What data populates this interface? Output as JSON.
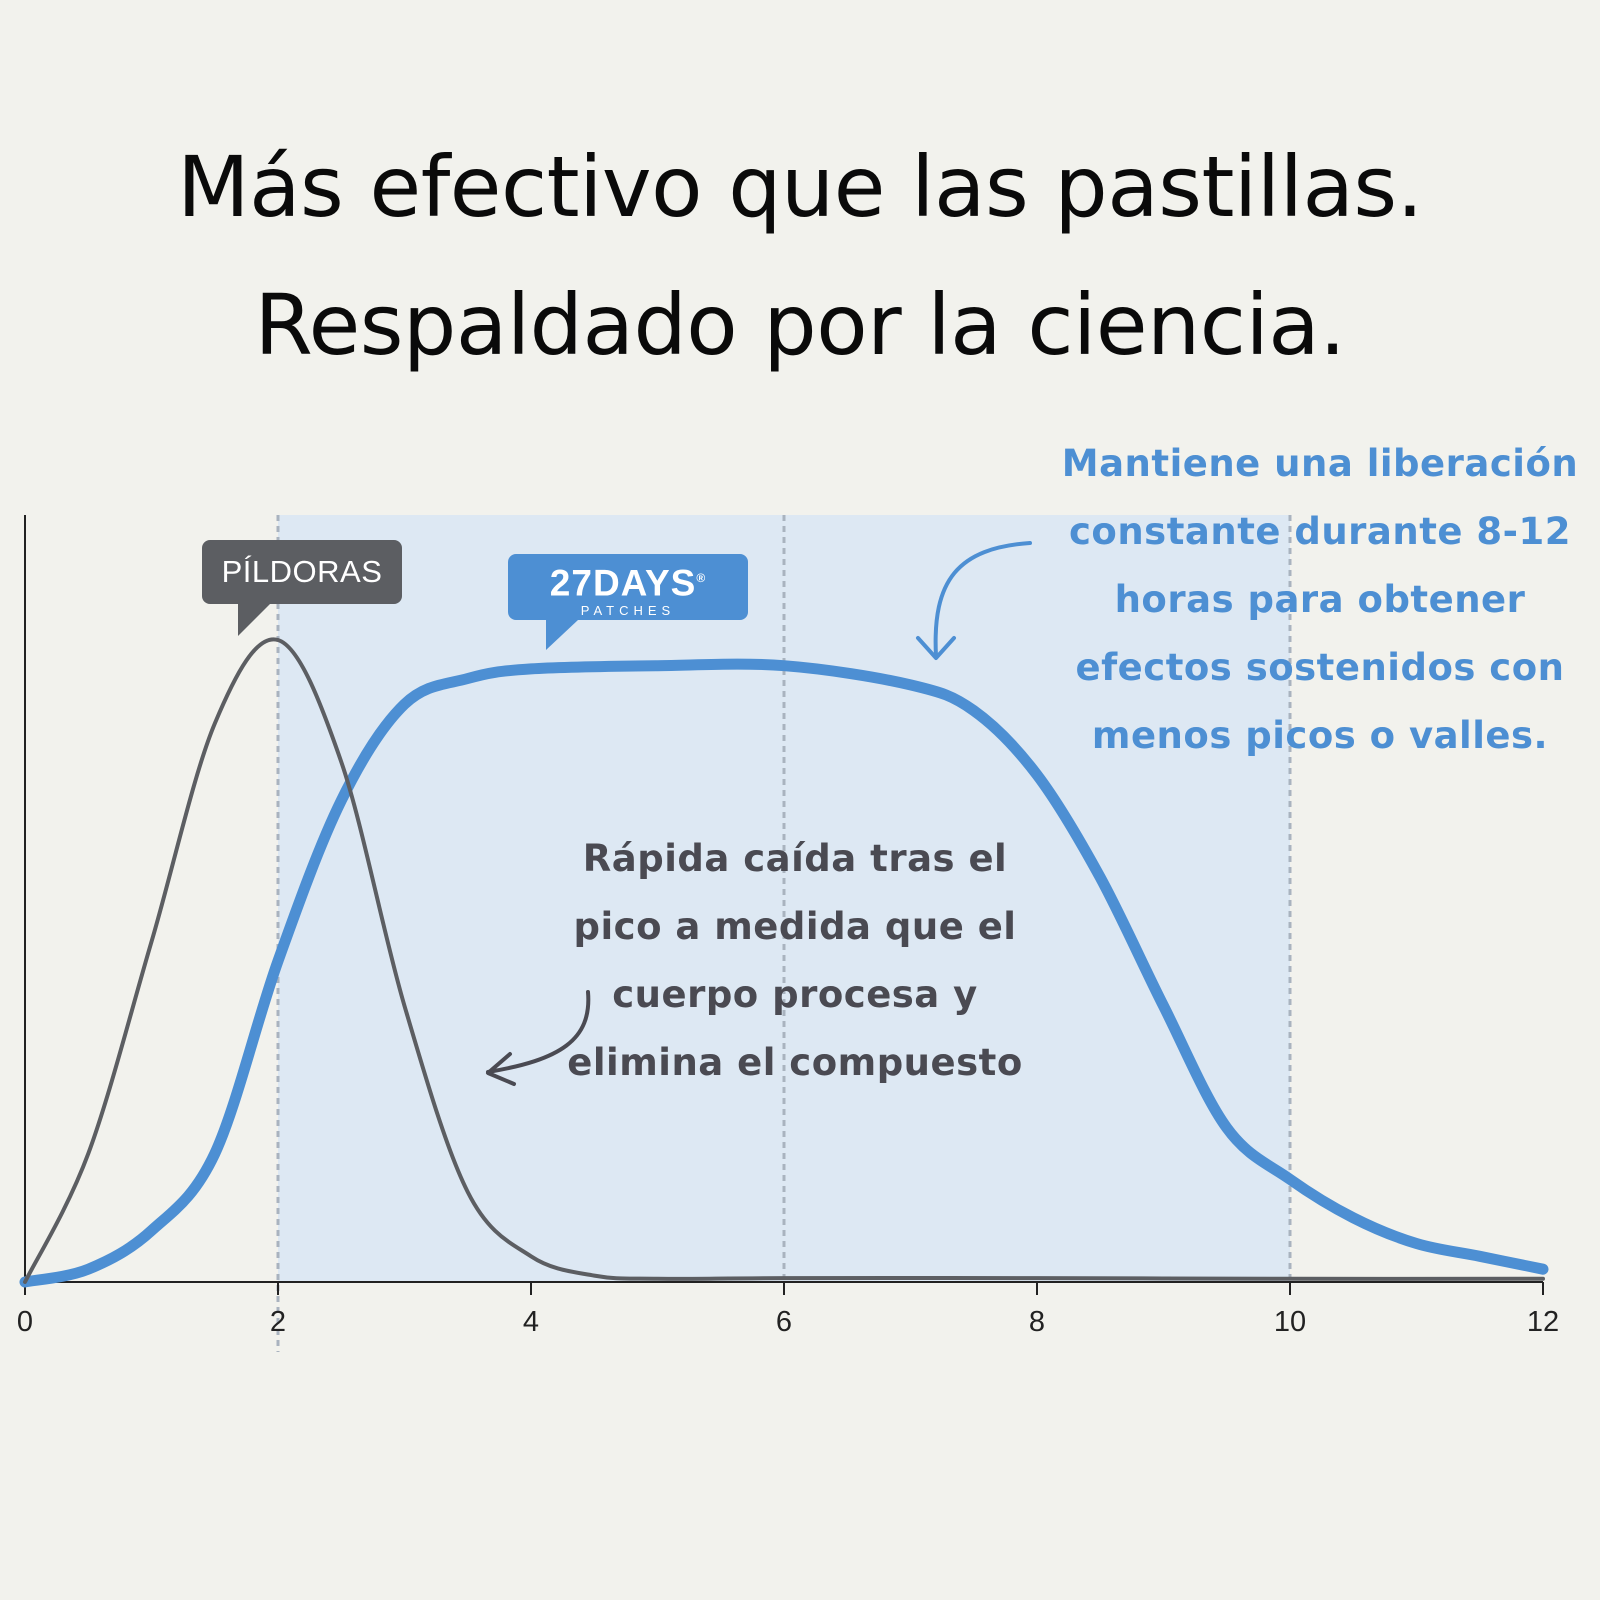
{
  "headline": {
    "line1": "Más efectivo que las pastillas.",
    "line2": "Respaldado por la ciencia."
  },
  "annotations": {
    "patch_note": "Mantiene una liberación constante durante 8-12 horas para obtener efectos sostenidos con menos picos o valles.",
    "pill_note": "Rápida caída tras el pico a medida que el cuerpo procesa y elimina el compuesto"
  },
  "labels": {
    "pills_tag": "PÍLDORAS",
    "brand_name": "27DAYS",
    "brand_mark": "®",
    "brand_sub": "PATCHES"
  },
  "colors": {
    "pill_line": "#5c5e62",
    "patch_line": "#4d8fd3",
    "shaded_band": "#dde8f3",
    "background": "#f2f2ed"
  },
  "chart_data": {
    "type": "line",
    "xlim": [
      0,
      12
    ],
    "xticks": [
      "0",
      "2",
      "4",
      "6",
      "8",
      "10",
      "12"
    ],
    "shaded_region": [
      2,
      10
    ],
    "dashed_lines": [
      2,
      6,
      10
    ],
    "ylim": [
      0,
      1
    ],
    "series": [
      {
        "name": "PÍLDORAS",
        "x": [
          0,
          0.5,
          1,
          1.5,
          2,
          2.5,
          3,
          3.5,
          4,
          4.5,
          5,
          6,
          8,
          10,
          12
        ],
        "y": [
          0.0,
          0.2,
          0.53,
          0.87,
          1.0,
          0.81,
          0.43,
          0.14,
          0.04,
          0.01,
          0.005,
          0.006,
          0.006,
          0.005,
          0.005
        ]
      },
      {
        "name": "27DAYS",
        "x": [
          0,
          0.5,
          1,
          1.5,
          2,
          2.5,
          3,
          3.5,
          4,
          5,
          6,
          7,
          7.5,
          8,
          8.5,
          9,
          9.5,
          10,
          10.5,
          11,
          11.5,
          12
        ],
        "y": [
          0.0,
          0.02,
          0.08,
          0.2,
          0.5,
          0.75,
          0.9,
          0.94,
          0.955,
          0.96,
          0.96,
          0.93,
          0.89,
          0.79,
          0.63,
          0.43,
          0.24,
          0.16,
          0.1,
          0.06,
          0.04,
          0.02
        ]
      }
    ]
  }
}
